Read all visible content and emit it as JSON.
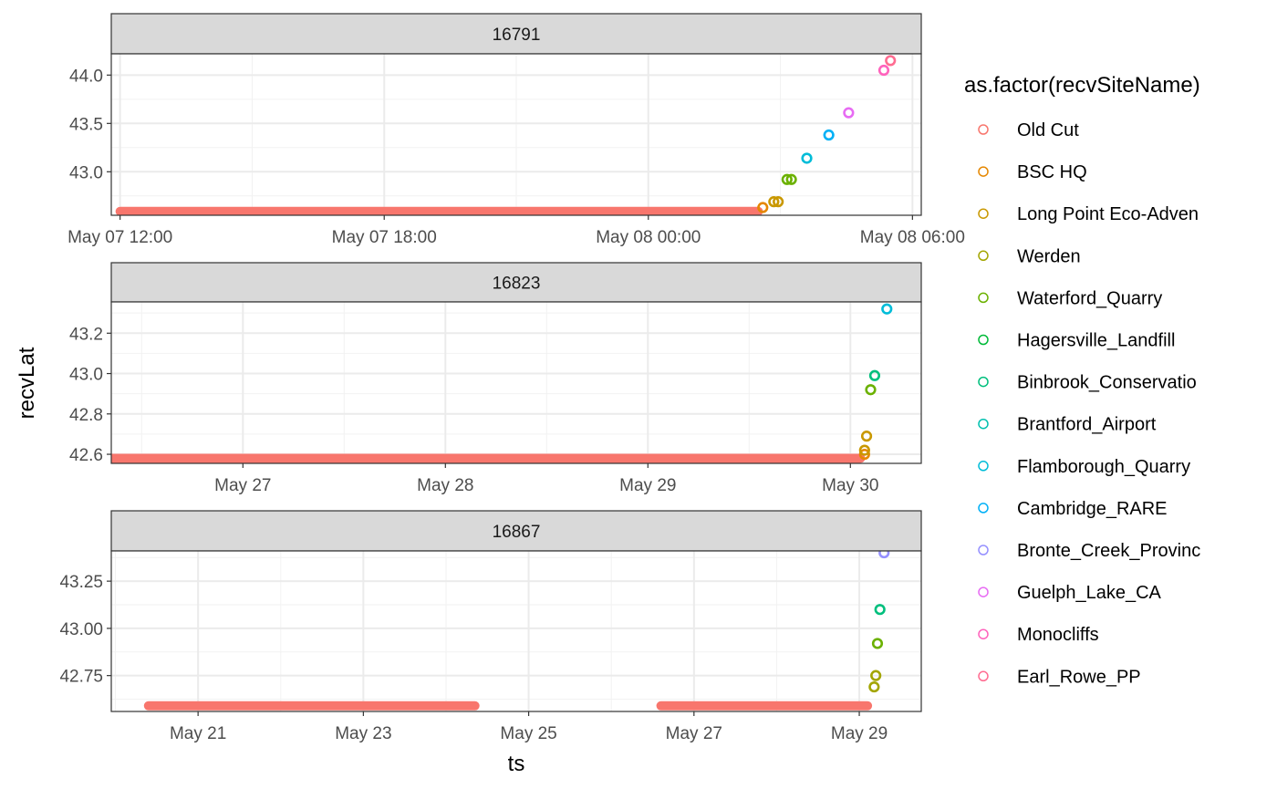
{
  "chart_data": {
    "type": "scatter",
    "xlabel": "ts",
    "ylabel": "recvLat",
    "legend": {
      "title": "as.factor(recvSiteName)",
      "placement": "right",
      "entries": [
        {
          "name": "Old Cut",
          "color": "#F8766D"
        },
        {
          "name": "BSC HQ",
          "color": "#E58700"
        },
        {
          "name": "Long Point Eco-Adven",
          "color": "#C99800"
        },
        {
          "name": "Werden",
          "color": "#A3A500"
        },
        {
          "name": "Waterford_Quarry",
          "color": "#6BB100"
        },
        {
          "name": "Hagersville_Landfill",
          "color": "#00BA38"
        },
        {
          "name": "Binbrook_Conservatio",
          "color": "#00BF7D"
        },
        {
          "name": "Brantford_Airport",
          "color": "#00C0AF"
        },
        {
          "name": "Flamborough_Quarry",
          "color": "#00BCD8"
        },
        {
          "name": "Cambridge_RARE",
          "color": "#00B0F6"
        },
        {
          "name": "Bronte_Creek_Provinc",
          "color": "#9590FF"
        },
        {
          "name": "Guelph_Lake_CA",
          "color": "#E76BF3"
        },
        {
          "name": "Monocliffs",
          "color": "#FF62BC"
        },
        {
          "name": "Earl_Rowe_PP",
          "color": "#FF6C91"
        }
      ]
    },
    "facets": [
      {
        "strip": "16791",
        "xunit": "hours from May 07 00:00",
        "xlim": [
          11.8,
          30.2
        ],
        "ylim": [
          42.55,
          44.22
        ],
        "xticks": [
          {
            "v": 12,
            "label": "May 07 12:00"
          },
          {
            "v": 18,
            "label": "May 07 18:00"
          },
          {
            "v": 24,
            "label": "May 08 00:00"
          },
          {
            "v": 30,
            "label": "May 08 06:00"
          }
        ],
        "xminor": [
          15,
          21,
          27
        ],
        "yticks": [
          {
            "v": 43.0,
            "label": "43.0"
          },
          {
            "v": 43.5,
            "label": "43.5"
          },
          {
            "v": 44.0,
            "label": "44.0"
          }
        ],
        "yminor": [
          42.75,
          43.25,
          43.75
        ],
        "bands": [
          {
            "x0": 12,
            "x1": 26.5,
            "y": 42.59,
            "site": 0
          }
        ],
        "points": [
          {
            "x": 26.6,
            "y": 42.63,
            "site": 1
          },
          {
            "x": 26.85,
            "y": 42.69,
            "site": 2
          },
          {
            "x": 26.95,
            "y": 42.69,
            "site": 2
          },
          {
            "x": 27.15,
            "y": 42.92,
            "site": 4
          },
          {
            "x": 27.25,
            "y": 42.92,
            "site": 4
          },
          {
            "x": 27.6,
            "y": 43.14,
            "site": 8
          },
          {
            "x": 28.1,
            "y": 43.38,
            "site": 9
          },
          {
            "x": 28.55,
            "y": 43.61,
            "site": 11
          },
          {
            "x": 29.35,
            "y": 44.05,
            "site": 12
          },
          {
            "x": 29.5,
            "y": 44.15,
            "site": 13
          }
        ]
      },
      {
        "strip": "16823",
        "xunit": "days in May",
        "xlim": [
          26.35,
          30.35
        ],
        "ylim": [
          42.555,
          43.355
        ],
        "xticks": [
          {
            "v": 27,
            "label": "May 27"
          },
          {
            "v": 28,
            "label": "May 28"
          },
          {
            "v": 29,
            "label": "May 29"
          },
          {
            "v": 30,
            "label": "May 30"
          }
        ],
        "xminor": [
          26.5,
          27.5,
          28.5,
          29.5
        ],
        "yticks": [
          {
            "v": 42.6,
            "label": "42.6"
          },
          {
            "v": 42.8,
            "label": "42.8"
          },
          {
            "v": 43.0,
            "label": "43.0"
          },
          {
            "v": 43.2,
            "label": "43.2"
          }
        ],
        "yminor": [
          42.7,
          42.9,
          43.1,
          43.3
        ],
        "bands": [
          {
            "x0": 26.35,
            "x1": 30.05,
            "y": 42.58,
            "site": 0
          }
        ],
        "points": [
          {
            "x": 30.07,
            "y": 42.6,
            "site": 1
          },
          {
            "x": 30.07,
            "y": 42.62,
            "site": 2
          },
          {
            "x": 30.08,
            "y": 42.69,
            "site": 2
          },
          {
            "x": 30.1,
            "y": 42.92,
            "site": 4
          },
          {
            "x": 30.12,
            "y": 42.99,
            "site": 6
          },
          {
            "x": 30.18,
            "y": 43.32,
            "site": 8
          }
        ]
      },
      {
        "strip": "16867",
        "xunit": "days in May",
        "xlim": [
          19.95,
          29.75
        ],
        "ylim": [
          42.56,
          43.41
        ],
        "xticks": [
          {
            "v": 21,
            "label": "May 21"
          },
          {
            "v": 23,
            "label": "May 23"
          },
          {
            "v": 25,
            "label": "May 25"
          },
          {
            "v": 27,
            "label": "May 27"
          },
          {
            "v": 29,
            "label": "May 29"
          }
        ],
        "xminor": [
          20,
          22,
          24,
          26,
          28
        ],
        "yticks": [
          {
            "v": 42.75,
            "label": "42.75"
          },
          {
            "v": 43.0,
            "label": "43.00"
          },
          {
            "v": 43.25,
            "label": "43.25"
          }
        ],
        "yminor": [
          42.625,
          42.875,
          43.125,
          43.375
        ],
        "bands": [
          {
            "x0": 20.4,
            "x1": 24.35,
            "y": 42.59,
            "site": 0
          },
          {
            "x0": 26.6,
            "x1": 29.1,
            "y": 42.59,
            "site": 0
          }
        ],
        "points": [
          {
            "x": 29.18,
            "y": 42.69,
            "site": 3
          },
          {
            "x": 29.2,
            "y": 42.75,
            "site": 3
          },
          {
            "x": 29.22,
            "y": 42.92,
            "site": 4
          },
          {
            "x": 29.25,
            "y": 43.1,
            "site": 6
          },
          {
            "x": 29.3,
            "y": 43.4,
            "site": 10
          }
        ]
      }
    ]
  }
}
